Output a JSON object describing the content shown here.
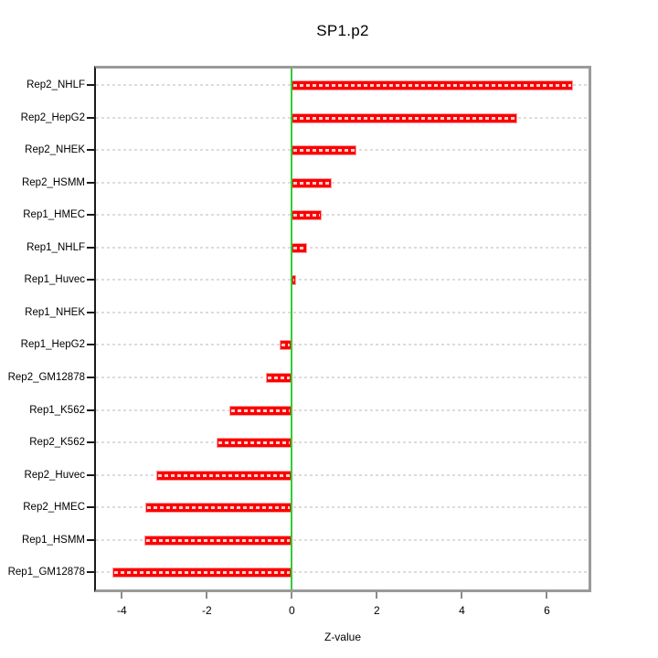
{
  "chart_data": {
    "type": "bar",
    "orientation": "horizontal",
    "title": "SP1.p2",
    "xlabel": "Z-value",
    "ylabel": "",
    "categories": [
      "Rep2_NHLF",
      "Rep2_HepG2",
      "Rep2_NHEK",
      "Rep2_HSMM",
      "Rep1_HMEC",
      "Rep1_NHLF",
      "Rep1_Huvec",
      "Rep1_NHEK",
      "Rep1_HepG2",
      "Rep2_GM12878",
      "Rep1_K562",
      "Rep2_K562",
      "Rep2_Huvec",
      "Rep2_HMEC",
      "Rep1_HSMM",
      "Rep1_GM12878"
    ],
    "values": [
      6.62,
      5.3,
      1.52,
      0.93,
      0.7,
      0.36,
      0.1,
      0.0,
      -0.28,
      -0.6,
      -1.48,
      -1.78,
      -3.2,
      -3.44,
      -3.47,
      -4.22
    ],
    "x_ticks": [
      -4,
      -2,
      0,
      2,
      4,
      6
    ],
    "xlim": [
      -4.61,
      6.98
    ],
    "grid": true,
    "zero_reference_line": 0,
    "legend": "none",
    "colors": {
      "bar_fill": "#fb0000",
      "bar_border": "#ff9c9c",
      "grid_line": "#dcdcdc",
      "zero_line": "#33cc33",
      "panel_border": "#9a9a9a",
      "axis_line": "#1a1a1a",
      "text": "#000000"
    }
  }
}
